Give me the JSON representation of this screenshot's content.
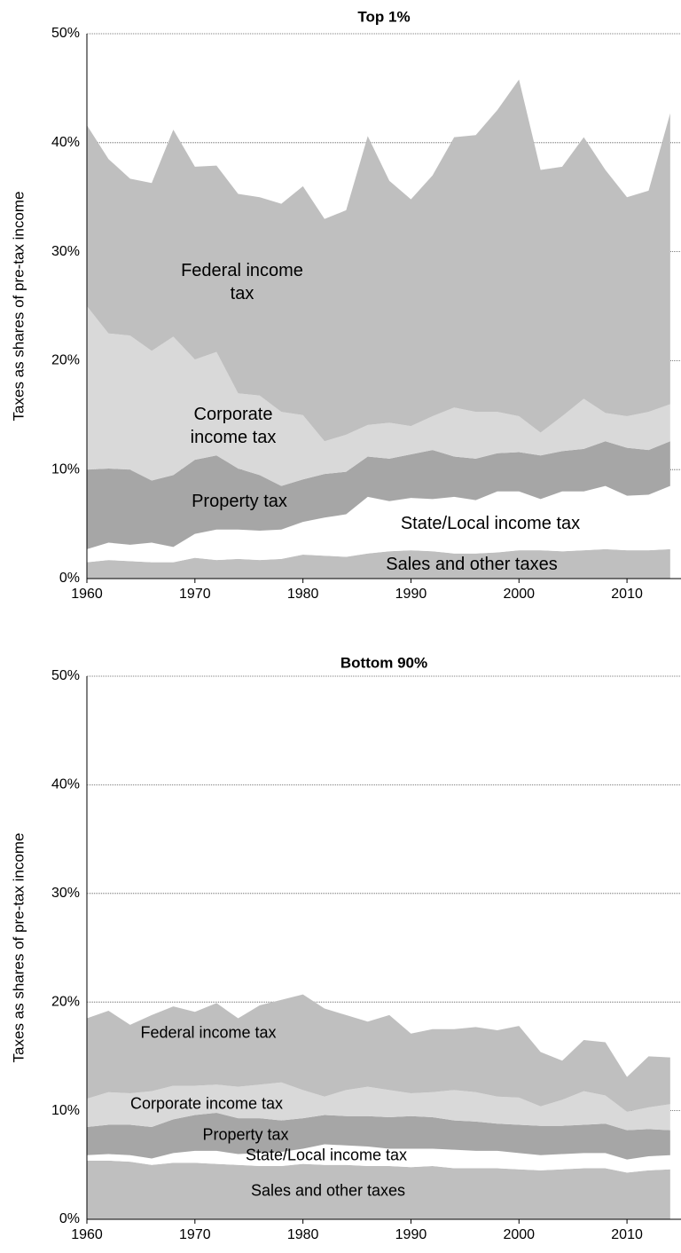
{
  "chart_data": [
    {
      "type": "stacked-area",
      "title": "Top 1%",
      "ylabel": "Taxes as shares of pre-tax income",
      "x": [
        1960,
        1962,
        1964,
        1966,
        1968,
        1970,
        1972,
        1974,
        1976,
        1978,
        1980,
        1982,
        1984,
        1986,
        1988,
        1990,
        1992,
        1994,
        1996,
        1998,
        2000,
        2002,
        2004,
        2006,
        2008,
        2010,
        2012,
        2014
      ],
      "xlim": [
        1960,
        2015
      ],
      "xticks": [
        1960,
        1970,
        1980,
        1990,
        2000,
        2010
      ],
      "ylim": [
        0,
        50
      ],
      "yticks": [
        {
          "value": 0,
          "label": "0%"
        },
        {
          "value": 10,
          "label": "10%"
        },
        {
          "value": 20,
          "label": "20%"
        },
        {
          "value": 30,
          "label": "30%"
        },
        {
          "value": 40,
          "label": "40%"
        },
        {
          "value": 50,
          "label": "50%"
        }
      ],
      "grid": true,
      "series": [
        {
          "name": "Sales and other taxes",
          "color": "#bfbfbf",
          "values": [
            1.5,
            1.7,
            1.6,
            1.5,
            1.5,
            1.9,
            1.7,
            1.8,
            1.7,
            1.8,
            2.2,
            2.1,
            2.0,
            2.3,
            2.5,
            2.6,
            2.5,
            2.3,
            2.3,
            2.4,
            2.6,
            2.6,
            2.5,
            2.6,
            2.7,
            2.6,
            2.6,
            2.7
          ]
        },
        {
          "name": "State/Local income tax",
          "color": "#ffffff",
          "values": [
            1.2,
            1.6,
            1.5,
            1.8,
            1.4,
            2.2,
            2.8,
            2.7,
            2.7,
            2.7,
            3.0,
            3.5,
            3.9,
            5.2,
            4.6,
            4.8,
            4.8,
            5.2,
            4.9,
            5.6,
            5.4,
            4.7,
            5.5,
            5.4,
            5.8,
            5.0,
            5.1,
            5.8
          ]
        },
        {
          "name": "Property tax",
          "color": "#a6a6a6",
          "values": [
            7.3,
            6.8,
            6.9,
            5.7,
            6.6,
            6.8,
            6.8,
            5.6,
            5.1,
            4.0,
            3.9,
            4.0,
            3.9,
            3.7,
            3.9,
            4.0,
            4.5,
            3.7,
            3.8,
            3.5,
            3.6,
            4.0,
            3.7,
            3.9,
            4.1,
            4.4,
            4.1,
            4.1
          ]
        },
        {
          "name": "Corporate income tax",
          "color": "#d9d9d9",
          "values": [
            15.0,
            12.4,
            12.3,
            11.9,
            12.7,
            9.2,
            9.5,
            6.9,
            7.3,
            6.8,
            5.9,
            3.0,
            3.4,
            2.9,
            3.3,
            2.6,
            3.1,
            4.5,
            4.3,
            3.8,
            3.3,
            2.1,
            3.2,
            4.6,
            2.6,
            2.9,
            3.5,
            3.4
          ]
        },
        {
          "name": "Federal income tax",
          "color": "#bfbfbf",
          "values": [
            16.6,
            16.0,
            14.4,
            15.4,
            19.0,
            17.7,
            17.1,
            18.3,
            18.2,
            19.1,
            21.0,
            20.4,
            20.6,
            26.5,
            22.2,
            20.8,
            22.1,
            24.8,
            25.4,
            27.7,
            30.9,
            24.1,
            22.9,
            24.0,
            22.3,
            20.1,
            20.3,
            26.7
          ]
        }
      ]
    },
    {
      "type": "stacked-area",
      "title": "Bottom 90%",
      "ylabel": "Taxes as shares of pre-tax income",
      "x": [
        1960,
        1962,
        1964,
        1966,
        1968,
        1970,
        1972,
        1974,
        1976,
        1978,
        1980,
        1982,
        1984,
        1986,
        1988,
        1990,
        1992,
        1994,
        1996,
        1998,
        2000,
        2002,
        2004,
        2006,
        2008,
        2010,
        2012,
        2014
      ],
      "xlim": [
        1960,
        2015
      ],
      "xticks": [
        1960,
        1970,
        1980,
        1990,
        2000,
        2010
      ],
      "ylim": [
        0,
        50
      ],
      "yticks": [
        {
          "value": 0,
          "label": "0%"
        },
        {
          "value": 10,
          "label": "10%"
        },
        {
          "value": 20,
          "label": "20%"
        },
        {
          "value": 30,
          "label": "30%"
        },
        {
          "value": 40,
          "label": "40%"
        },
        {
          "value": 50,
          "label": "50%"
        }
      ],
      "grid": true,
      "series": [
        {
          "name": "Sales and other taxes",
          "color": "#bfbfbf",
          "values": [
            5.4,
            5.4,
            5.3,
            5.0,
            5.2,
            5.2,
            5.1,
            5.0,
            4.9,
            4.9,
            5.1,
            5.0,
            5.0,
            4.9,
            4.9,
            4.8,
            4.9,
            4.7,
            4.7,
            4.7,
            4.6,
            4.5,
            4.6,
            4.7,
            4.7,
            4.3,
            4.5,
            4.6
          ]
        },
        {
          "name": "State/Local income tax",
          "color": "#ffffff",
          "values": [
            0.5,
            0.6,
            0.6,
            0.6,
            0.9,
            1.1,
            1.2,
            1.0,
            1.2,
            1.3,
            1.4,
            1.9,
            1.8,
            1.8,
            1.6,
            1.7,
            1.6,
            1.7,
            1.6,
            1.6,
            1.5,
            1.4,
            1.4,
            1.4,
            1.4,
            1.2,
            1.3,
            1.3
          ]
        },
        {
          "name": "Property tax",
          "color": "#a6a6a6",
          "values": [
            2.6,
            2.7,
            2.8,
            2.9,
            3.1,
            3.3,
            3.5,
            3.3,
            3.2,
            2.9,
            2.8,
            2.7,
            2.7,
            2.8,
            2.9,
            3.0,
            2.9,
            2.7,
            2.7,
            2.5,
            2.6,
            2.7,
            2.6,
            2.6,
            2.7,
            2.7,
            2.5,
            2.3
          ]
        },
        {
          "name": "Corporate income tax",
          "color": "#d9d9d9",
          "values": [
            2.6,
            3.0,
            2.9,
            3.3,
            3.1,
            2.7,
            2.6,
            2.9,
            3.1,
            3.5,
            2.6,
            1.7,
            2.4,
            2.7,
            2.5,
            2.1,
            2.3,
            2.8,
            2.7,
            2.5,
            2.5,
            1.8,
            2.4,
            3.1,
            2.6,
            1.7,
            2.0,
            2.4
          ]
        },
        {
          "name": "Federal income tax",
          "color": "#bfbfbf",
          "values": [
            7.4,
            7.5,
            6.3,
            7.0,
            7.3,
            6.8,
            7.5,
            6.3,
            7.3,
            7.6,
            8.8,
            8.1,
            6.9,
            6.0,
            6.9,
            5.5,
            5.8,
            5.6,
            6.0,
            6.1,
            6.6,
            5.0,
            3.6,
            4.7,
            4.9,
            3.2,
            4.7,
            4.3
          ]
        }
      ]
    }
  ]
}
